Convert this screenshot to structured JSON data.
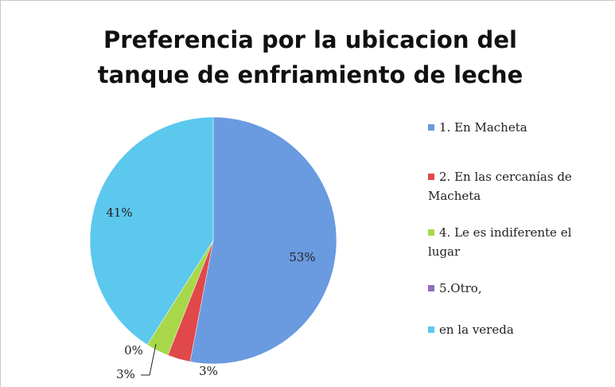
{
  "chart_data": {
    "type": "pie",
    "title": "Preferencia por la ubicacion del tanque de enfriamiento de leche",
    "categories": [
      "1. En Macheta",
      "2. En las cercanías de Macheta",
      "4. Le es indiferente el lugar",
      "5.Otro,",
      "en la vereda"
    ],
    "values": [
      53,
      3,
      3,
      0,
      41
    ],
    "value_labels": [
      "53%",
      "3%",
      "3%",
      "0%",
      "41%"
    ],
    "colors": [
      "#6a9ae0",
      "#e0484a",
      "#a8d84a",
      "#8e6bc0",
      "#5cc8ee"
    ],
    "legend": "right"
  }
}
